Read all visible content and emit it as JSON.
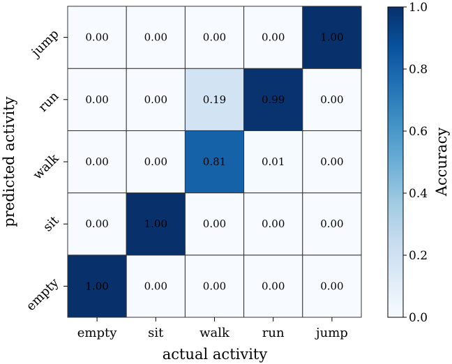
{
  "chart_data": {
    "type": "heatmap",
    "title": "",
    "xlabel": "actual activity",
    "ylabel": "predicted activity",
    "x_categories": [
      "empty",
      "sit",
      "walk",
      "run",
      "jump"
    ],
    "y_categories": [
      "empty",
      "sit",
      "walk",
      "run",
      "jump"
    ],
    "values": [
      [
        1.0,
        0.0,
        0.0,
        0.0,
        0.0
      ],
      [
        0.0,
        1.0,
        0.0,
        0.0,
        0.0
      ],
      [
        0.0,
        0.0,
        0.81,
        0.01,
        0.0
      ],
      [
        0.0,
        0.0,
        0.19,
        0.99,
        0.0
      ],
      [
        0.0,
        0.0,
        0.0,
        0.0,
        1.0
      ]
    ],
    "colorbar": {
      "label": "Accuracy",
      "range": [
        0,
        1
      ],
      "ticks": [
        "0.0",
        "0.2",
        "0.4",
        "0.6",
        "0.8",
        "1.0"
      ],
      "colormap": "Blues",
      "colors": [
        "#f7fbff",
        "#deebf7",
        "#c6dbef",
        "#9ecae1",
        "#6baed6",
        "#4292c6",
        "#2171b5",
        "#08519c",
        "#08306b"
      ]
    }
  }
}
